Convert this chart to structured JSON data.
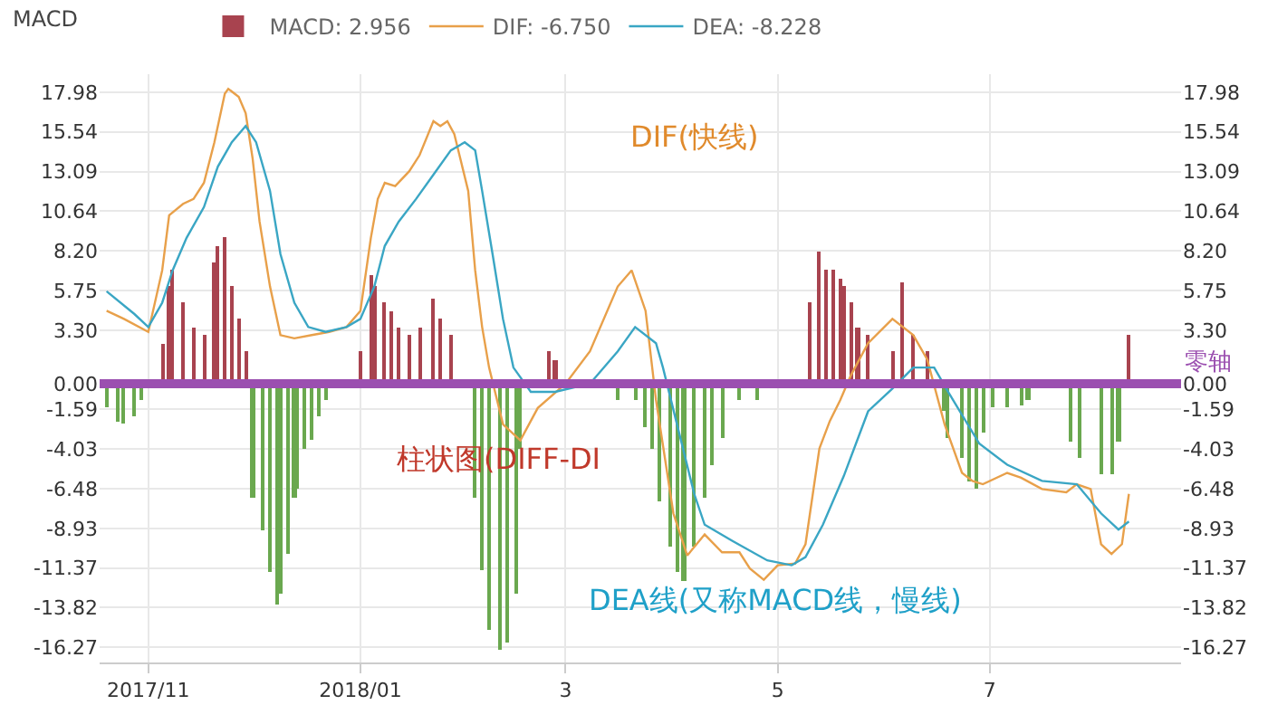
{
  "chart_data": {
    "type": "line",
    "title": "MACD",
    "xlim": [
      "2017-10-18",
      "2018-08-25"
    ],
    "xticks": [
      {
        "value": "2017-11-01",
        "label": "2017/11"
      },
      {
        "value": "2018-01-01",
        "label": "2018/01"
      },
      {
        "value": "2018-03-01",
        "label": "3"
      },
      {
        "value": "2018-05-01",
        "label": "5"
      },
      {
        "value": "2018-07-01",
        "label": "7"
      }
    ],
    "ylim": [
      -17.2,
      19.1
    ],
    "yticks": [
      17.98,
      15.54,
      13.09,
      10.64,
      {
        "value": 8.2,
        "label": "8.20"
      },
      5.75,
      {
        "value": 3.3,
        "label": "3.30"
      },
      {
        "value": 0.0,
        "label": "0.00"
      },
      -1.59,
      -4.03,
      -6.48,
      -8.93,
      -11.37,
      -13.82,
      -16.27
    ],
    "y2lim": [
      -17.2,
      19.1
    ],
    "y2ticks": [
      17.98,
      15.54,
      13.09,
      10.64,
      {
        "value": 8.2,
        "label": "8.20"
      },
      5.75,
      {
        "value": 3.3,
        "label": "3.30"
      },
      {
        "value": 0.0,
        "label": "0.00"
      },
      -1.59,
      -4.03,
      -6.48,
      -8.93,
      -11.37,
      -13.82,
      -16.27
    ],
    "grid": true,
    "legend": "top left",
    "marker": "none",
    "line_style": "solid",
    "series": [
      {
        "name": "MACD: 2.956",
        "type": "bar",
        "color": "#a8434f",
        "x": [
          "2017-11-05",
          "2017-11-07",
          "2017-11-08",
          "2017-11-11",
          "2017-11-14",
          "2017-11-17",
          "2017-11-20",
          "2017-11-21",
          "2017-11-23",
          "2017-11-25",
          "2017-11-27",
          "2017-11-29",
          "2018-01-01",
          "2018-01-04",
          "2018-01-05",
          "2018-01-08",
          "2018-01-10",
          "2018-01-12",
          "2018-01-15",
          "2018-01-18",
          "2018-01-22",
          "2018-01-24",
          "2018-01-27",
          "2018-02-24",
          "2018-02-26",
          "2018-05-10",
          "2018-05-13",
          "2018-05-15",
          "2018-05-17",
          "2018-05-19",
          "2018-05-20",
          "2018-05-22",
          "2018-05-24",
          "2018-05-27",
          "2018-06-03",
          "2018-06-06",
          "2018-06-09",
          "2018-06-13",
          "2018-08-10"
        ],
        "values": [
          2.5,
          6.0,
          7.0,
          5.0,
          3.5,
          3.0,
          7.5,
          8.5,
          9.0,
          6.0,
          4.0,
          2.0,
          2.0,
          6.7,
          6.0,
          5.0,
          4.5,
          3.5,
          3.0,
          3.5,
          5.3,
          4.0,
          3.0,
          2.0,
          1.5,
          5.0,
          8.2,
          7.0,
          7.0,
          6.5,
          6.0,
          5.0,
          3.5,
          3.0,
          2.0,
          6.3,
          3.0,
          2.0,
          3.0
        ]
      },
      {
        "type": "bar",
        "color": "#6aa84f",
        "x": [
          "2017-10-20",
          "2017-10-23",
          "2017-10-25",
          "2017-10-28",
          "2017-10-30",
          "2017-12-01",
          "2017-12-04",
          "2017-12-06",
          "2017-12-08",
          "2017-12-09",
          "2017-12-11",
          "2017-12-13",
          "2017-12-14",
          "2017-12-16",
          "2017-12-18",
          "2017-12-20",
          "2017-12-22",
          "2018-02-03",
          "2018-02-05",
          "2018-02-07",
          "2018-02-10",
          "2018-02-12",
          "2018-02-15",
          "2018-02-16",
          "2018-03-16",
          "2018-03-21",
          "2018-03-24",
          "2018-03-26",
          "2018-03-28",
          "2018-03-31",
          "2018-04-02",
          "2018-04-04",
          "2018-04-07",
          "2018-04-10",
          "2018-04-12",
          "2018-04-15",
          "2018-04-20",
          "2018-04-25",
          "2018-06-18",
          "2018-06-19",
          "2018-06-23",
          "2018-06-25",
          "2018-06-27",
          "2018-06-29",
          "2018-07-02",
          "2018-07-06",
          "2018-07-10",
          "2018-07-12",
          "2018-07-24",
          "2018-07-27",
          "2018-08-02",
          "2018-08-05",
          "2018-08-07"
        ],
        "values": [
          -1.5,
          -2.3,
          -2.5,
          -2.0,
          -1.0,
          -7.0,
          -9.0,
          -11.6,
          -13.6,
          -13.0,
          -10.5,
          -7.0,
          -6.5,
          -4.0,
          -3.5,
          -2.0,
          -1.0,
          -7.0,
          -11.5,
          -15.2,
          -16.4,
          -16.0,
          -13.0,
          -4.0,
          -1.0,
          -1.0,
          -2.7,
          -4.0,
          -7.3,
          -10.0,
          -11.6,
          -12.2,
          -10.0,
          -7.0,
          -5.0,
          -3.3,
          -1.0,
          -1.0,
          -1.7,
          -3.3,
          -4.6,
          -6.0,
          -6.5,
          -3.0,
          -1.5,
          -1.5,
          -1.3,
          -1.0,
          -3.6,
          -4.6,
          -5.6,
          -5.6,
          -3.6
        ]
      },
      {
        "name": "DIF: -6.750",
        "color": "#e8a04a",
        "x": [
          "2017-10-20",
          "2017-10-25",
          "2017-11-01",
          "2017-11-05",
          "2017-11-07",
          "2017-11-11",
          "2017-11-14",
          "2017-11-17",
          "2017-11-20",
          "2017-11-23",
          "2017-11-24",
          "2017-11-27",
          "2017-11-29",
          "2017-12-01",
          "2017-12-03",
          "2017-12-06",
          "2017-12-09",
          "2017-12-13",
          "2017-12-18",
          "2017-12-23",
          "2017-12-28",
          "2018-01-01",
          "2018-01-04",
          "2018-01-06",
          "2018-01-08",
          "2018-01-11",
          "2018-01-15",
          "2018-01-18",
          "2018-01-22",
          "2018-01-24",
          "2018-01-26",
          "2018-01-28",
          "2018-02-01",
          "2018-02-03",
          "2018-02-05",
          "2018-02-07",
          "2018-02-11",
          "2018-02-16",
          "2018-02-21",
          "2018-03-01",
          "2018-03-08",
          "2018-03-16",
          "2018-03-20",
          "2018-03-24",
          "2018-03-27",
          "2018-04-01",
          "2018-04-05",
          "2018-04-10",
          "2018-04-15",
          "2018-04-20",
          "2018-04-23",
          "2018-04-27",
          "2018-05-01",
          "2018-05-06",
          "2018-05-09",
          "2018-05-13",
          "2018-05-16",
          "2018-05-19",
          "2018-05-22",
          "2018-05-27",
          "2018-06-03",
          "2018-06-09",
          "2018-06-13",
          "2018-06-18",
          "2018-06-23",
          "2018-06-26",
          "2018-06-29",
          "2018-07-06",
          "2018-07-10",
          "2018-07-16",
          "2018-07-23",
          "2018-07-26",
          "2018-07-30",
          "2018-08-02",
          "2018-08-05",
          "2018-08-08",
          "2018-08-10"
        ],
        "values": [
          4.5,
          4.0,
          3.2,
          7.0,
          10.4,
          11.1,
          11.4,
          12.4,
          14.9,
          17.9,
          18.2,
          17.7,
          16.7,
          13.9,
          10.0,
          6.0,
          3.0,
          2.8,
          3.0,
          3.2,
          3.5,
          4.5,
          9.0,
          11.4,
          12.4,
          12.2,
          13.1,
          14.1,
          16.2,
          15.9,
          16.2,
          15.4,
          11.9,
          7.0,
          3.5,
          1.0,
          -2.5,
          -3.5,
          -1.5,
          0.0,
          2.0,
          6.0,
          7.0,
          4.5,
          -1.0,
          -8.0,
          -10.6,
          -9.3,
          -10.4,
          -10.4,
          -11.4,
          -12.1,
          -11.2,
          -11.1,
          -9.9,
          -4.0,
          -2.3,
          -1.0,
          0.5,
          2.5,
          4.0,
          3.0,
          1.5,
          -2.5,
          -5.5,
          -6.0,
          -6.2,
          -5.5,
          -5.8,
          -6.5,
          -6.7,
          -6.2,
          -6.5,
          -9.9,
          -10.5,
          -9.9,
          -6.8
        ]
      },
      {
        "name": "DEA: -8.228",
        "color": "#3aa6c4",
        "x": [
          "2017-10-20",
          "2017-10-28",
          "2017-11-01",
          "2017-11-05",
          "2017-11-08",
          "2017-11-12",
          "2017-11-17",
          "2017-11-21",
          "2017-11-25",
          "2017-11-29",
          "2017-12-02",
          "2017-12-06",
          "2017-12-09",
          "2017-12-13",
          "2017-12-17",
          "2017-12-22",
          "2017-12-28",
          "2018-01-01",
          "2018-01-05",
          "2018-01-08",
          "2018-01-12",
          "2018-01-17",
          "2018-01-22",
          "2018-01-27",
          "2018-01-31",
          "2018-02-03",
          "2018-02-05",
          "2018-02-08",
          "2018-02-11",
          "2018-02-14",
          "2018-02-19",
          "2018-02-26",
          "2018-03-08",
          "2018-03-16",
          "2018-03-21",
          "2018-03-27",
          "2018-03-29",
          "2018-04-07",
          "2018-04-10",
          "2018-04-18",
          "2018-04-28",
          "2018-05-05",
          "2018-05-09",
          "2018-05-14",
          "2018-05-20",
          "2018-05-27",
          "2018-06-03",
          "2018-06-09",
          "2018-06-15",
          "2018-06-19",
          "2018-06-28",
          "2018-07-06",
          "2018-07-16",
          "2018-07-26",
          "2018-08-02",
          "2018-08-07",
          "2018-08-10"
        ],
        "values": [
          5.7,
          4.3,
          3.5,
          5.0,
          7.0,
          9.0,
          10.9,
          13.4,
          14.9,
          15.9,
          14.9,
          11.9,
          8.0,
          5.0,
          3.5,
          3.2,
          3.5,
          4.0,
          6.0,
          8.5,
          10.0,
          11.4,
          12.9,
          14.4,
          14.9,
          14.4,
          11.9,
          8.0,
          4.0,
          1.0,
          -0.5,
          -0.5,
          0.0,
          2.0,
          3.5,
          2.5,
          1.0,
          -6.8,
          -8.7,
          -9.7,
          -10.9,
          -11.2,
          -10.7,
          -8.7,
          -5.7,
          -1.7,
          -0.3,
          1.0,
          1.0,
          -0.5,
          -3.7,
          -5.0,
          -6.0,
          -6.2,
          -8.0,
          -9.0,
          -8.5
        ]
      }
    ],
    "ref_lines": [
      {
        "axis": "y",
        "value": 0.0,
        "label": "零轴",
        "color": "#9b4fb0"
      }
    ],
    "annotations": [
      "DIF(快线)",
      "柱状图(DIFF-DI",
      "DEA线(又称MACD线，慢线)"
    ]
  }
}
